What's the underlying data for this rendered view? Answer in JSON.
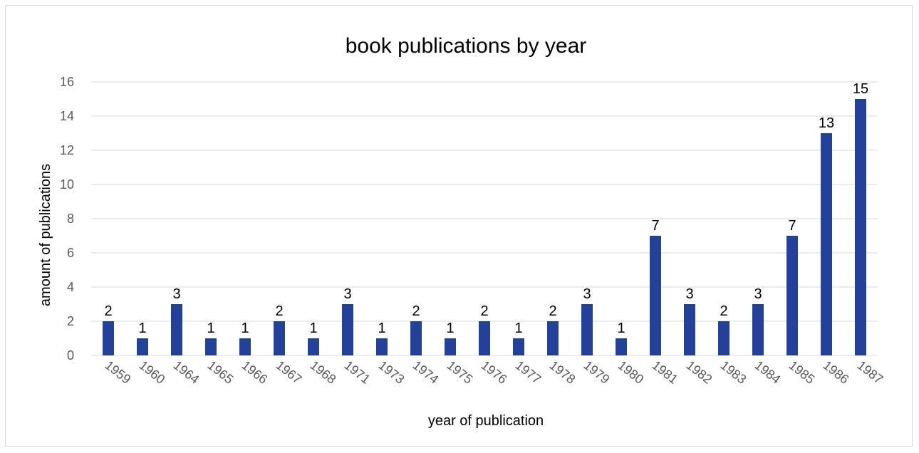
{
  "chart_data": {
    "type": "bar",
    "title": "book publications by year",
    "xlabel": "year of publication",
    "ylabel": "amount of publications",
    "categories": [
      "1959",
      "1960",
      "1964",
      "1965",
      "1966",
      "1967",
      "1968",
      "1971",
      "1973",
      "1974",
      "1975",
      "1976",
      "1977",
      "1978",
      "1979",
      "1980",
      "1981",
      "1982",
      "1983",
      "1984",
      "1985",
      "1986",
      "1987"
    ],
    "values": [
      2,
      1,
      3,
      1,
      1,
      2,
      1,
      3,
      1,
      2,
      1,
      2,
      1,
      2,
      3,
      1,
      7,
      3,
      2,
      3,
      7,
      13,
      15
    ],
    "ylim": [
      0,
      16
    ],
    "yticks": [
      0,
      2,
      4,
      6,
      8,
      10,
      12,
      14,
      16
    ],
    "grid": true,
    "data_labels": true,
    "bar_color": "#23409a",
    "gridline_color": "#d9d9d9",
    "tick_label_color": "#595959"
  }
}
